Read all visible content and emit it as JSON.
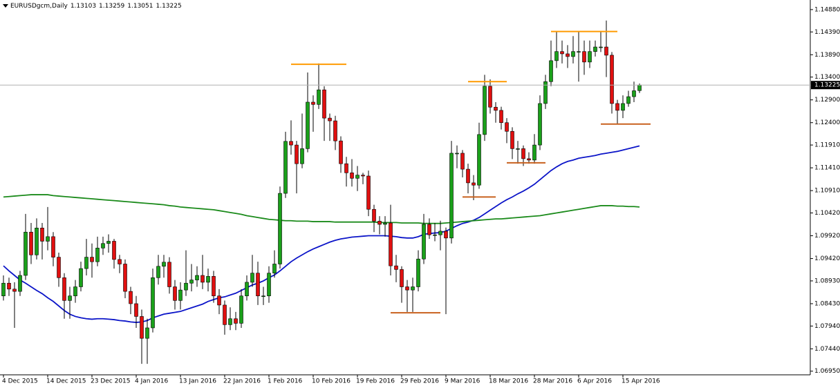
{
  "chart_data": {
    "type": "candlestick",
    "symbol": "EURUSDgcm,Daily",
    "header_ohlc": [
      1.13103,
      1.13259,
      1.13051,
      1.13225
    ],
    "current_price": 1.13225,
    "categories": [
      "4 Dec 2015",
      null,
      null,
      null,
      null,
      null,
      null,
      null,
      "14 Dec 2015",
      null,
      null,
      null,
      null,
      null,
      null,
      null,
      "23 Dec 2015",
      null,
      null,
      null,
      null,
      null,
      null,
      null,
      "4 Jan 2016",
      null,
      null,
      null,
      null,
      null,
      null,
      null,
      "13 Jan 2016",
      null,
      null,
      null,
      null,
      null,
      null,
      null,
      "22 Jan 2016",
      null,
      null,
      null,
      null,
      null,
      null,
      null,
      "1 Feb 2016",
      null,
      null,
      null,
      null,
      null,
      null,
      null,
      "10 Feb 2016",
      null,
      null,
      null,
      null,
      null,
      null,
      null,
      "19 Feb 2016",
      null,
      null,
      null,
      null,
      null,
      null,
      null,
      "29 Feb 2016",
      null,
      null,
      null,
      null,
      null,
      null,
      null,
      "9 Mar 2016",
      null,
      null,
      null,
      null,
      null,
      null,
      null,
      "18 Mar 2016",
      null,
      null,
      null,
      null,
      null,
      null,
      null,
      "28 Mar 2016",
      null,
      null,
      null,
      null,
      null,
      null,
      null,
      "6 Apr 2016",
      null,
      null,
      null,
      null,
      null,
      null,
      null,
      "15 Apr 2016",
      null,
      null,
      null
    ],
    "open": [
      1.086,
      1.0888,
      1.0875,
      1.087,
      1.0905,
      1.1,
      1.095,
      1.1009,
      1.098,
      1.099,
      1.0945,
      1.09,
      1.085,
      1.086,
      1.088,
      1.092,
      1.0945,
      1.0935,
      1.0965,
      1.0975,
      1.098,
      1.094,
      1.093,
      1.087,
      1.0843,
      1.0815,
      1.0767,
      1.079,
      1.09,
      1.0925,
      1.0934,
      1.088,
      1.085,
      1.0873,
      1.0888,
      1.0895,
      1.0905,
      1.089,
      1.0903,
      1.086,
      1.084,
      1.0797,
      1.081,
      1.08,
      1.086,
      1.089,
      1.091,
      1.086,
      1.086,
      1.091,
      1.093,
      1.1085,
      1.1199,
      1.1191,
      1.115,
      1.1183,
      1.1285,
      1.128,
      1.1312,
      1.125,
      1.1244,
      1.12,
      1.115,
      1.113,
      1.1118,
      1.1125,
      1.1123,
      1.105,
      1.1024,
      1.1017,
      1.102,
      1.0926,
      1.0918,
      1.088,
      1.0873,
      1.088,
      1.0941,
      1.1017,
      1.0994,
      1.0994,
      1.1002,
      1.0987,
      1.1173,
      1.1173,
      1.1138,
      1.1108,
      1.1103,
      1.1214,
      1.132,
      1.1274,
      1.1267,
      1.124,
      1.1221,
      1.1183,
      1.1183,
      1.1161,
      1.1158,
      1.1191,
      1.1282,
      1.133,
      1.1376,
      1.1396,
      1.1391,
      1.1385,
      1.1396,
      1.1396,
      1.1373,
      1.1396,
      1.1406,
      1.1406,
      1.1388,
      1.1282,
      1.1267,
      1.1282,
      1.1297,
      1.13103
    ],
    "high": [
      1.0905,
      1.09,
      1.089,
      1.0915,
      1.104,
      1.102,
      1.103,
      1.102,
      1.1055,
      1.1,
      1.0955,
      1.091,
      1.088,
      1.0895,
      1.0935,
      1.0985,
      1.0975,
      1.099,
      1.099,
      1.0995,
      1.0985,
      1.095,
      1.094,
      1.088,
      1.086,
      1.083,
      1.081,
      1.092,
      1.095,
      1.095,
      1.0945,
      1.0895,
      1.089,
      1.096,
      1.093,
      1.0925,
      1.095,
      1.092,
      1.0915,
      1.0875,
      1.085,
      1.0835,
      1.0825,
      1.0875,
      1.0905,
      1.095,
      1.0935,
      1.088,
      1.0925,
      1.096,
      1.11,
      1.122,
      1.1245,
      1.12,
      1.126,
      1.135,
      1.13,
      1.137,
      1.132,
      1.126,
      1.1255,
      1.121,
      1.1165,
      1.116,
      1.1145,
      1.113,
      1.1135,
      1.106,
      1.1035,
      1.1035,
      1.106,
      1.095,
      1.0925,
      1.0895,
      1.09,
      1.096,
      1.104,
      1.103,
      1.102,
      1.1025,
      1.101,
      1.12,
      1.119,
      1.118,
      1.115,
      1.1125,
      1.124,
      1.1345,
      1.1335,
      1.1285,
      1.1275,
      1.125,
      1.123,
      1.12,
      1.119,
      1.1175,
      1.1215,
      1.13,
      1.1345,
      1.142,
      1.144,
      1.142,
      1.141,
      1.143,
      1.144,
      1.142,
      1.142,
      1.142,
      1.144,
      1.1464,
      1.1395,
      1.129,
      1.13,
      1.131,
      1.133,
      1.13259
    ],
    "low": [
      1.085,
      1.086,
      1.079,
      1.086,
      1.0895,
      1.093,
      1.094,
      1.094,
      1.096,
      1.0925,
      1.088,
      1.081,
      1.081,
      1.0845,
      1.087,
      1.0905,
      1.09,
      1.0925,
      1.095,
      1.0955,
      1.092,
      1.091,
      1.0855,
      1.082,
      1.079,
      1.0711,
      1.0711,
      1.078,
      1.0885,
      1.09,
      1.0865,
      1.083,
      1.083,
      1.086,
      1.087,
      1.088,
      1.0875,
      1.087,
      1.0845,
      1.082,
      1.0775,
      1.0785,
      1.0785,
      1.079,
      1.085,
      1.088,
      1.084,
      1.084,
      1.0845,
      1.09,
      1.092,
      1.1075,
      1.117,
      1.1085,
      1.114,
      1.1175,
      1.122,
      1.127,
      1.12,
      1.12,
      1.118,
      1.113,
      1.11,
      1.11,
      1.109,
      1.1105,
      1.1035,
      1.1,
      1.0995,
      1.099,
      1.0905,
      1.089,
      1.0845,
      1.0825,
      1.0825,
      1.087,
      1.093,
      1.0985,
      1.098,
      1.096,
      1.082,
      1.0975,
      1.114,
      1.112,
      1.1085,
      1.107,
      1.1095,
      1.12,
      1.126,
      1.124,
      1.1225,
      1.1195,
      1.116,
      1.115,
      1.1145,
      1.115,
      1.115,
      1.118,
      1.127,
      1.132,
      1.136,
      1.137,
      1.136,
      1.137,
      1.133,
      1.1345,
      1.136,
      1.1385,
      1.1395,
      1.134,
      1.126,
      1.1237,
      1.125,
      1.1275,
      1.1285,
      1.13051
    ],
    "close": [
      1.0888,
      1.0875,
      1.087,
      1.0905,
      1.1,
      1.095,
      1.1009,
      1.098,
      1.099,
      1.0945,
      1.09,
      1.085,
      1.086,
      1.088,
      1.092,
      1.0945,
      1.0935,
      1.0965,
      1.0975,
      1.098,
      1.094,
      1.093,
      1.087,
      1.0843,
      1.0815,
      1.0767,
      1.079,
      1.09,
      1.0925,
      1.0934,
      1.088,
      1.085,
      1.0873,
      1.0888,
      1.0895,
      1.0905,
      1.089,
      1.0903,
      1.086,
      1.084,
      1.0797,
      1.081,
      1.08,
      1.086,
      1.089,
      1.091,
      1.086,
      1.086,
      1.091,
      1.093,
      1.1085,
      1.1199,
      1.1191,
      1.115,
      1.1183,
      1.1285,
      1.128,
      1.1312,
      1.125,
      1.1244,
      1.12,
      1.115,
      1.113,
      1.1118,
      1.1125,
      1.1123,
      1.105,
      1.1024,
      1.1017,
      1.102,
      1.0926,
      1.0918,
      1.088,
      1.0873,
      1.088,
      1.0941,
      1.1017,
      1.0994,
      1.0994,
      1.1002,
      1.0987,
      1.1173,
      1.1173,
      1.1138,
      1.1108,
      1.1103,
      1.1214,
      1.132,
      1.1274,
      1.1267,
      1.124,
      1.1221,
      1.1183,
      1.1183,
      1.1161,
      1.1158,
      1.1191,
      1.1282,
      1.133,
      1.1376,
      1.1396,
      1.1391,
      1.1385,
      1.1396,
      1.1396,
      1.1373,
      1.1396,
      1.1406,
      1.1406,
      1.1388,
      1.1282,
      1.1267,
      1.1282,
      1.1297,
      1.131,
      1.13225
    ],
    "bull_color": "#1aa01a",
    "bear_color": "#e01010",
    "lines": [
      {
        "color": "#0b14c8",
        "values": [
          1.0926,
          1.0915,
          1.0905,
          1.0895,
          1.0888,
          1.088,
          1.0872,
          1.0865,
          1.0856,
          1.0848,
          1.0838,
          1.0828,
          1.082,
          1.0815,
          1.0812,
          1.081,
          1.0809,
          1.081,
          1.081,
          1.0809,
          1.0808,
          1.0806,
          1.0805,
          1.0803,
          1.0802,
          1.0803,
          1.0806,
          1.0812,
          1.0816,
          1.082,
          1.0822,
          1.0824,
          1.0826,
          1.083,
          1.0834,
          1.0838,
          1.0842,
          1.0848,
          1.0852,
          1.0856,
          1.0858,
          1.0862,
          1.0866,
          1.0872,
          1.0878,
          1.0884,
          1.0888,
          1.0893,
          1.09,
          1.0906,
          1.0915,
          1.0925,
          1.0935,
          1.0943,
          1.095,
          1.0957,
          1.0963,
          1.0968,
          1.0973,
          1.0978,
          1.0982,
          1.0985,
          1.0987,
          1.0989,
          1.099,
          1.0991,
          1.0992,
          1.0992,
          1.0992,
          1.0992,
          1.0991,
          1.099,
          1.0988,
          1.0987,
          1.0987,
          1.099,
          1.0995,
          1.0997,
          1.0998,
          1.0999,
          1.1002,
          1.1008,
          1.1014,
          1.1019,
          1.1022,
          1.1026,
          1.1032,
          1.104,
          1.1048,
          1.1056,
          1.1064,
          1.1071,
          1.1077,
          1.1084,
          1.109,
          1.1097,
          1.1105,
          1.1115,
          1.1125,
          1.1135,
          1.1143,
          1.115,
          1.1155,
          1.1158,
          1.1162,
          1.1164,
          1.1166,
          1.1168,
          1.1171,
          1.1173,
          1.1175,
          1.1177,
          1.118,
          1.1183,
          1.1186,
          1.1189
        ]
      },
      {
        "color": "#1a8a1a",
        "values": [
          1.1077,
          1.1078,
          1.1079,
          1.108,
          1.1081,
          1.1082,
          1.1082,
          1.1082,
          1.1082,
          1.108,
          1.1079,
          1.1078,
          1.1077,
          1.1076,
          1.1075,
          1.1074,
          1.1073,
          1.1072,
          1.1071,
          1.107,
          1.1069,
          1.1068,
          1.1067,
          1.1066,
          1.1065,
          1.1064,
          1.1063,
          1.1062,
          1.1061,
          1.106,
          1.1058,
          1.1057,
          1.1055,
          1.1054,
          1.1053,
          1.1052,
          1.1051,
          1.105,
          1.1049,
          1.1047,
          1.1045,
          1.1043,
          1.1041,
          1.1039,
          1.1036,
          1.1034,
          1.1032,
          1.103,
          1.1028,
          1.1027,
          1.1026,
          1.1025,
          1.1025,
          1.1024,
          1.1024,
          1.1024,
          1.1023,
          1.1023,
          1.1023,
          1.1023,
          1.1022,
          1.1022,
          1.1022,
          1.1022,
          1.1022,
          1.1022,
          1.1022,
          1.1022,
          1.1021,
          1.1021,
          1.1021,
          1.1021,
          1.102,
          1.102,
          1.102,
          1.102,
          1.1019,
          1.1019,
          1.1019,
          1.1019,
          1.102,
          1.1021,
          1.1022,
          1.1023,
          1.1024,
          1.1025,
          1.1026,
          1.1027,
          1.1028,
          1.1029,
          1.1029,
          1.103,
          1.1031,
          1.1032,
          1.1033,
          1.1034,
          1.1035,
          1.1036,
          1.1038,
          1.104,
          1.1042,
          1.1044,
          1.1046,
          1.1048,
          1.105,
          1.1052,
          1.1054,
          1.1056,
          1.1058,
          1.1058,
          1.1058,
          1.1057,
          1.1057,
          1.1056,
          1.1056,
          1.1055
        ]
      }
    ],
    "levels": [
      {
        "value": 1.1368,
        "color": "#ff9a00",
        "start": 52,
        "end": 62
      },
      {
        "value": 1.133,
        "color": "#ff9a00",
        "start": 84,
        "end": 91
      },
      {
        "value": 1.144,
        "color": "#ff9a00",
        "start": 99,
        "end": 111
      },
      {
        "value": 1.1237,
        "color": "#c8601e",
        "start": 108,
        "end": 117
      },
      {
        "value": 1.1152,
        "color": "#c8601e",
        "start": 91,
        "end": 98
      },
      {
        "value": 1.1077,
        "color": "#c8601e",
        "start": 83,
        "end": 89
      },
      {
        "value": 1.0823,
        "color": "#c8601e",
        "start": 70,
        "end": 79
      }
    ],
    "ylim": [
      1.0687,
      1.1506
    ],
    "yticks": [
      {
        "value": 1.1488,
        "label": "1.14880"
      },
      {
        "value": 1.1439,
        "label": "1.14390"
      },
      {
        "value": 1.1389,
        "label": "1.13890"
      },
      {
        "value": 1.134,
        "label": "1.13400"
      },
      {
        "value": 1.129,
        "label": "1.12900"
      },
      {
        "value": 1.124,
        "label": "1.12400"
      },
      {
        "value": 1.1191,
        "label": "1.11910"
      },
      {
        "value": 1.1141,
        "label": "1.11410"
      },
      {
        "value": 1.1091,
        "label": "1.10910"
      },
      {
        "value": 1.1042,
        "label": "1.10420"
      },
      {
        "value": 1.0992,
        "label": "1.09920"
      },
      {
        "value": 1.0942,
        "label": "1.09420"
      },
      {
        "value": 1.0893,
        "label": "1.08930"
      },
      {
        "value": 1.0843,
        "label": "1.08430"
      },
      {
        "value": 1.0794,
        "label": "1.07940"
      },
      {
        "value": 1.0744,
        "label": "1.07440"
      },
      {
        "value": 1.0695,
        "label": "1.06950"
      }
    ]
  }
}
